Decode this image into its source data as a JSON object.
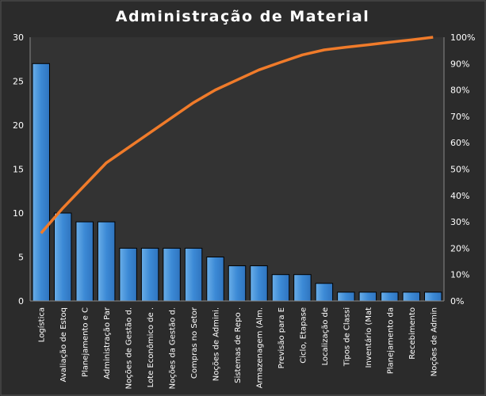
{
  "chart_data": {
    "type": "bar",
    "title": "Administração  de Material",
    "categories": [
      "Logística",
      "Avaliação de Estoq",
      "Planejamento e C",
      "Administração Par",
      "Noções de Gestão d.",
      "Lote Econômico de .",
      "Noções da Gestão d.",
      "Compras no Setor",
      "Noções de Admini.",
      "Sistemas de Repo .",
      "Armazenagem (Alm.",
      "Previsão para E",
      "Ciclo, Etapase",
      "Localização de",
      "Tipos de Classi",
      "Inventário (Mat",
      "Planejamento da",
      "Recebimento",
      "Noções de Admin"
    ],
    "values": [
      27,
      10,
      9,
      9,
      6,
      6,
      6,
      6,
      5,
      4,
      4,
      3,
      3,
      2,
      1,
      1,
      1,
      1,
      1
    ],
    "cumulative_percent": [
      25.7,
      35.2,
      43.8,
      52.4,
      58.1,
      63.8,
      69.5,
      75.2,
      80.0,
      83.8,
      87.6,
      90.5,
      93.3,
      95.2,
      96.2,
      97.1,
      98.1,
      99.0,
      100
    ],
    "ylim": [
      0,
      30
    ],
    "y_ticks": [
      "0",
      "5",
      "10",
      "15",
      "20",
      "25",
      "30"
    ],
    "y2lim": [
      0,
      100
    ],
    "y2_ticks": [
      "0%",
      "10%",
      "20%",
      "30%",
      "40%",
      "50%",
      "60%",
      "70%",
      "80%",
      "90%",
      "100%"
    ],
    "xlabel": "",
    "ylabel": "",
    "grid": false,
    "legend": "none",
    "colors": {
      "bar": "#3c8ad6",
      "line": "#f07b2a",
      "background": "#2b2b2b",
      "plot": "#333333"
    }
  }
}
